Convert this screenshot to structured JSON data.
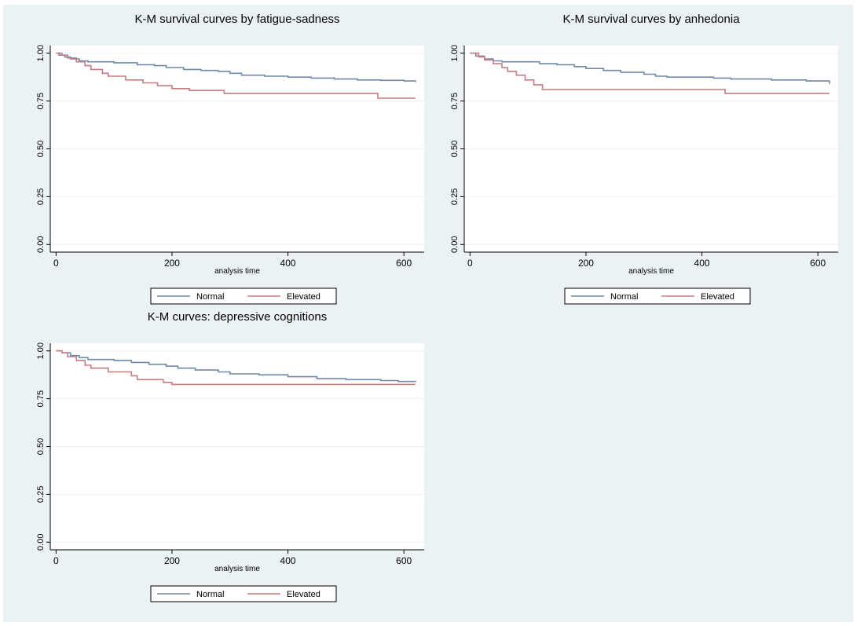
{
  "colors": {
    "background": "#eaf2f3",
    "plot_background": "#ffffff",
    "gridline": "#eaf2f3",
    "normal": "#6e8aa6",
    "elevated": "#c47d85"
  },
  "chart_data": [
    {
      "type": "line",
      "title": "K-M survival curves by fatigue-sadness",
      "xlabel": "analysis time",
      "ylabel": "",
      "xlim": [
        -10,
        635
      ],
      "ylim": [
        -0.04,
        1.04
      ],
      "xticks": [
        0,
        200,
        400,
        600
      ],
      "yticks": [
        0,
        0.25,
        0.5,
        0.75,
        1
      ],
      "ytick_labels": [
        "0.00",
        "0.25",
        "0.50",
        "0.75",
        "1.00"
      ],
      "grid": true,
      "legend_position": "bottom",
      "series": [
        {
          "name": "Normal",
          "steps": [
            [
              0,
              1.0
            ],
            [
              5,
              0.99
            ],
            [
              15,
              0.98
            ],
            [
              25,
              0.97
            ],
            [
              40,
              0.96
            ],
            [
              55,
              0.955
            ],
            [
              100,
              0.95
            ],
            [
              140,
              0.94
            ],
            [
              170,
              0.935
            ],
            [
              190,
              0.925
            ],
            [
              220,
              0.915
            ],
            [
              250,
              0.91
            ],
            [
              280,
              0.905
            ],
            [
              300,
              0.895
            ],
            [
              320,
              0.885
            ],
            [
              360,
              0.88
            ],
            [
              400,
              0.875
            ],
            [
              440,
              0.87
            ],
            [
              480,
              0.865
            ],
            [
              520,
              0.86
            ],
            [
              560,
              0.858
            ],
            [
              600,
              0.855
            ],
            [
              620,
              0.85
            ]
          ]
        },
        {
          "name": "Elevated",
          "steps": [
            [
              0,
              1.0
            ],
            [
              10,
              0.99
            ],
            [
              20,
              0.975
            ],
            [
              35,
              0.955
            ],
            [
              50,
              0.935
            ],
            [
              60,
              0.915
            ],
            [
              80,
              0.895
            ],
            [
              90,
              0.88
            ],
            [
              120,
              0.86
            ],
            [
              150,
              0.845
            ],
            [
              175,
              0.83
            ],
            [
              200,
              0.815
            ],
            [
              230,
              0.805
            ],
            [
              290,
              0.79
            ],
            [
              555,
              0.765
            ],
            [
              620,
              0.765
            ]
          ]
        }
      ]
    },
    {
      "type": "line",
      "title": "K-M survival curves by anhedonia",
      "xlabel": "analysis time",
      "ylabel": "",
      "xlim": [
        -10,
        635
      ],
      "ylim": [
        -0.04,
        1.04
      ],
      "xticks": [
        0,
        200,
        400,
        600
      ],
      "yticks": [
        0,
        0.25,
        0.5,
        0.75,
        1
      ],
      "ytick_labels": [
        "0.00",
        "0.25",
        "0.50",
        "0.75",
        "1.00"
      ],
      "grid": true,
      "legend_position": "bottom",
      "series": [
        {
          "name": "Normal",
          "steps": [
            [
              0,
              1.0
            ],
            [
              10,
              0.985
            ],
            [
              25,
              0.97
            ],
            [
              40,
              0.96
            ],
            [
              55,
              0.955
            ],
            [
              120,
              0.945
            ],
            [
              150,
              0.94
            ],
            [
              180,
              0.93
            ],
            [
              200,
              0.92
            ],
            [
              230,
              0.91
            ],
            [
              260,
              0.9
            ],
            [
              300,
              0.89
            ],
            [
              320,
              0.88
            ],
            [
              340,
              0.875
            ],
            [
              420,
              0.87
            ],
            [
              450,
              0.865
            ],
            [
              520,
              0.86
            ],
            [
              580,
              0.855
            ],
            [
              620,
              0.84
            ]
          ]
        },
        {
          "name": "Elevated",
          "steps": [
            [
              0,
              1.0
            ],
            [
              15,
              0.98
            ],
            [
              25,
              0.965
            ],
            [
              40,
              0.945
            ],
            [
              55,
              0.925
            ],
            [
              65,
              0.905
            ],
            [
              80,
              0.885
            ],
            [
              95,
              0.86
            ],
            [
              110,
              0.835
            ],
            [
              125,
              0.81
            ],
            [
              440,
              0.79
            ],
            [
              620,
              0.79
            ]
          ]
        }
      ]
    },
    {
      "type": "line",
      "title": "K-M curves: depressive cognitions",
      "xlabel": "analysis time",
      "ylabel": "",
      "xlim": [
        -10,
        635
      ],
      "ylim": [
        -0.04,
        1.04
      ],
      "xticks": [
        0,
        200,
        400,
        600
      ],
      "yticks": [
        0,
        0.25,
        0.5,
        0.75,
        1
      ],
      "ytick_labels": [
        "0.00",
        "0.25",
        "0.50",
        "0.75",
        "1.00"
      ],
      "grid": true,
      "legend_position": "bottom",
      "series": [
        {
          "name": "Normal",
          "steps": [
            [
              0,
              1.0
            ],
            [
              10,
              0.99
            ],
            [
              25,
              0.975
            ],
            [
              40,
              0.965
            ],
            [
              55,
              0.955
            ],
            [
              100,
              0.95
            ],
            [
              130,
              0.94
            ],
            [
              160,
              0.93
            ],
            [
              190,
              0.92
            ],
            [
              210,
              0.91
            ],
            [
              240,
              0.9
            ],
            [
              280,
              0.89
            ],
            [
              300,
              0.88
            ],
            [
              350,
              0.875
            ],
            [
              400,
              0.865
            ],
            [
              450,
              0.855
            ],
            [
              500,
              0.85
            ],
            [
              560,
              0.845
            ],
            [
              590,
              0.84
            ],
            [
              620,
              0.838
            ]
          ]
        },
        {
          "name": "Elevated",
          "steps": [
            [
              0,
              1.0
            ],
            [
              10,
              0.99
            ],
            [
              20,
              0.97
            ],
            [
              35,
              0.95
            ],
            [
              50,
              0.925
            ],
            [
              60,
              0.91
            ],
            [
              90,
              0.89
            ],
            [
              130,
              0.87
            ],
            [
              140,
              0.85
            ],
            [
              185,
              0.835
            ],
            [
              200,
              0.825
            ],
            [
              620,
              0.825
            ]
          ]
        }
      ]
    }
  ]
}
